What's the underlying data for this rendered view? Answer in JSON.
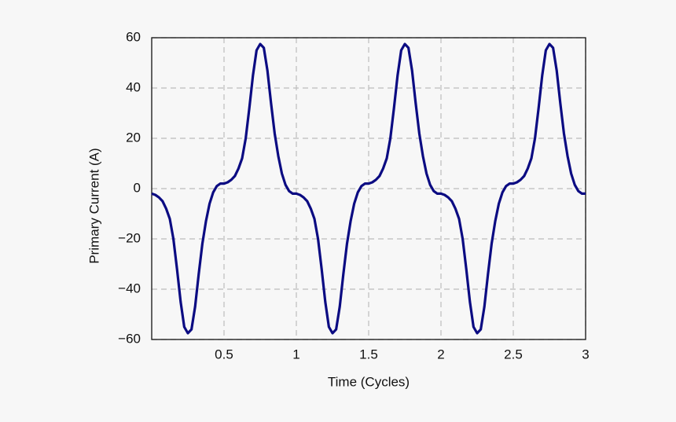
{
  "chart_data": {
    "type": "line",
    "x_label": "Time (Cycles)",
    "y_label": "Primary Current (A)",
    "x": [
      0,
      0.025,
      0.05,
      0.075,
      0.1,
      0.125,
      0.15,
      0.175,
      0.2,
      0.225,
      0.25,
      0.275,
      0.3,
      0.325,
      0.35,
      0.375,
      0.4,
      0.425,
      0.45,
      0.475,
      0.5,
      0.525,
      0.55,
      0.575,
      0.6,
      0.625,
      0.65,
      0.675,
      0.7,
      0.725,
      0.75,
      0.775,
      0.8,
      0.825,
      0.85,
      0.875,
      0.9,
      0.925,
      0.95,
      0.975,
      1,
      1.025,
      1.05,
      1.075,
      1.1,
      1.125,
      1.15,
      1.175,
      1.2,
      1.225,
      1.25,
      1.275,
      1.3,
      1.325,
      1.35,
      1.375,
      1.4,
      1.425,
      1.45,
      1.475,
      1.5,
      1.525,
      1.55,
      1.575,
      1.6,
      1.625,
      1.65,
      1.675,
      1.7,
      1.725,
      1.75,
      1.775,
      1.8,
      1.825,
      1.85,
      1.875,
      1.9,
      1.925,
      1.95,
      1.975,
      2,
      2.025,
      2.05,
      2.075,
      2.1,
      2.125,
      2.15,
      2.175,
      2.2,
      2.225,
      2.25,
      2.275,
      2.3,
      2.325,
      2.35,
      2.375,
      2.4,
      2.425,
      2.45,
      2.475,
      2.5,
      2.525,
      2.55,
      2.575,
      2.6,
      2.625,
      2.65,
      2.675,
      2.7,
      2.725,
      2.75,
      2.775,
      2.8,
      2.825,
      2.85,
      2.875,
      2.9,
      2.925,
      2.95,
      2.975,
      3
    ],
    "series": [
      {
        "color": "#0b0b82",
        "values": [
          -2,
          -2.5,
          -3.5,
          -5,
          -8,
          -12,
          -20,
          -32,
          -45,
          -55,
          -57.5,
          -56,
          -47,
          -34,
          -22,
          -13,
          -6,
          -1.5,
          1,
          2,
          2,
          2.5,
          3.5,
          5,
          8,
          12,
          20,
          32,
          45,
          55,
          57.5,
          56,
          47,
          34,
          22,
          13,
          6,
          1.5,
          -1,
          -2,
          -2,
          -2.5,
          -3.5,
          -5,
          -8,
          -12,
          -20,
          -32,
          -45,
          -55,
          -57.5,
          -56,
          -47,
          -34,
          -22,
          -13,
          -6,
          -1.5,
          1,
          2,
          2,
          2.5,
          3.5,
          5,
          8,
          12,
          20,
          32,
          45,
          55,
          57.5,
          56,
          47,
          34,
          22,
          13,
          6,
          1.5,
          -1,
          -2,
          -2,
          -2.5,
          -3.5,
          -5,
          -8,
          -12,
          -20,
          -32,
          -45,
          -55,
          -57.5,
          -56,
          -47,
          -34,
          -22,
          -13,
          -6,
          -1.5,
          1,
          2,
          2,
          2.5,
          3.5,
          5,
          8,
          12,
          20,
          32,
          45,
          55,
          57.5,
          56,
          47,
          34,
          22,
          13,
          6,
          1.5,
          -1,
          -2,
          -2
        ]
      }
    ],
    "xlim": [
      0,
      3
    ],
    "xticks": [
      0.5,
      1,
      1.5,
      2,
      2.5,
      3
    ],
    "ylim": [
      -60,
      60
    ],
    "yticks": [
      {
        "value": -60,
        "label": "−60"
      },
      {
        "value": -40,
        "label": "−40"
      },
      {
        "value": -20,
        "label": "−20"
      },
      0,
      20,
      40,
      60
    ],
    "grid": true
  }
}
